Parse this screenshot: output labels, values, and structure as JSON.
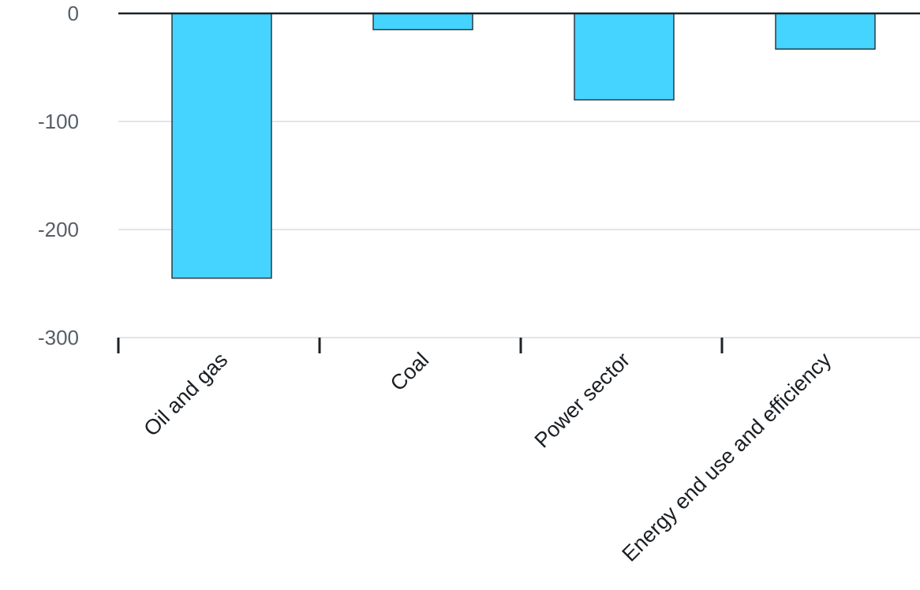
{
  "chart_data": {
    "type": "bar",
    "categories": [
      "Oil and gas",
      "Coal",
      "Power sector",
      "Energy end use and efficiency"
    ],
    "values": [
      -245,
      -15,
      -80,
      -33
    ],
    "title": "",
    "xlabel": "",
    "ylabel": "",
    "ylim": [
      -300,
      0
    ],
    "yticks": [
      0,
      -100,
      -200,
      -300
    ],
    "y_tick_labels": [
      "0",
      "-100",
      "-200",
      "-300"
    ],
    "grid": true,
    "legend": "none",
    "colors": {
      "bar": "#45d4ff",
      "bar_stroke": "#2b3a44",
      "grid": "#e1e5e9",
      "axis": "#1d2227"
    }
  }
}
